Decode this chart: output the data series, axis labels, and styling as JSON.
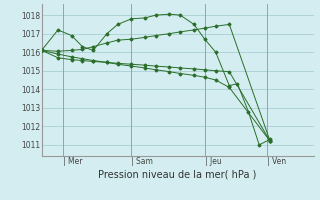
{
  "background_color": "#d4edf0",
  "grid_color": "#a0c8cc",
  "line_color": "#2a6e2a",
  "marker_color": "#2a6e2a",
  "xlabel": "Pression niveau de la mer( hPa )",
  "ylim": [
    1010.4,
    1018.6
  ],
  "yticks": [
    1011,
    1012,
    1013,
    1014,
    1015,
    1016,
    1017,
    1018
  ],
  "day_labels": [
    "| Mer",
    "| Sam",
    "| Jeu",
    "| Ven"
  ],
  "day_positions": [
    0.08,
    0.33,
    0.6,
    0.83
  ],
  "vlines": [
    0.08,
    0.33,
    0.6,
    0.83
  ],
  "xlim": [
    0.0,
    1.0
  ],
  "series": {
    "s1_x": [
      0.0,
      0.06,
      0.11,
      0.15,
      0.19,
      0.24,
      0.28,
      0.33,
      0.38,
      0.42,
      0.47,
      0.51,
      0.56,
      0.6,
      0.64,
      0.69,
      0.72,
      0.76,
      0.8,
      0.84
    ],
    "s1_y": [
      1016.1,
      1017.2,
      1016.9,
      1016.3,
      1016.1,
      1017.0,
      1017.5,
      1017.8,
      1017.85,
      1018.0,
      1018.05,
      1018.0,
      1017.5,
      1016.7,
      1016.0,
      1014.2,
      1014.3,
      1012.8,
      1011.0,
      1011.3
    ],
    "s2_x": [
      0.0,
      0.06,
      0.11,
      0.15,
      0.19,
      0.24,
      0.28,
      0.33,
      0.38,
      0.42,
      0.47,
      0.51,
      0.56,
      0.6,
      0.64,
      0.69,
      0.84
    ],
    "s2_y": [
      1016.1,
      1016.05,
      1016.1,
      1016.15,
      1016.3,
      1016.5,
      1016.65,
      1016.7,
      1016.8,
      1016.9,
      1017.0,
      1017.1,
      1017.2,
      1017.3,
      1017.4,
      1017.5,
      1011.2
    ],
    "s3_x": [
      0.0,
      0.06,
      0.11,
      0.15,
      0.19,
      0.24,
      0.28,
      0.33,
      0.38,
      0.42,
      0.47,
      0.51,
      0.56,
      0.6,
      0.64,
      0.69,
      0.84
    ],
    "s3_y": [
      1016.1,
      1015.9,
      1015.75,
      1015.65,
      1015.55,
      1015.45,
      1015.35,
      1015.25,
      1015.15,
      1015.05,
      1014.95,
      1014.85,
      1014.75,
      1014.65,
      1014.5,
      1014.1,
      1011.2
    ],
    "s4_x": [
      0.0,
      0.06,
      0.11,
      0.15,
      0.19,
      0.24,
      0.28,
      0.33,
      0.38,
      0.42,
      0.47,
      0.51,
      0.56,
      0.6,
      0.64,
      0.69,
      0.84
    ],
    "s4_y": [
      1016.1,
      1015.7,
      1015.6,
      1015.55,
      1015.5,
      1015.45,
      1015.4,
      1015.35,
      1015.3,
      1015.25,
      1015.2,
      1015.15,
      1015.1,
      1015.05,
      1015.0,
      1014.95,
      1011.2
    ]
  }
}
